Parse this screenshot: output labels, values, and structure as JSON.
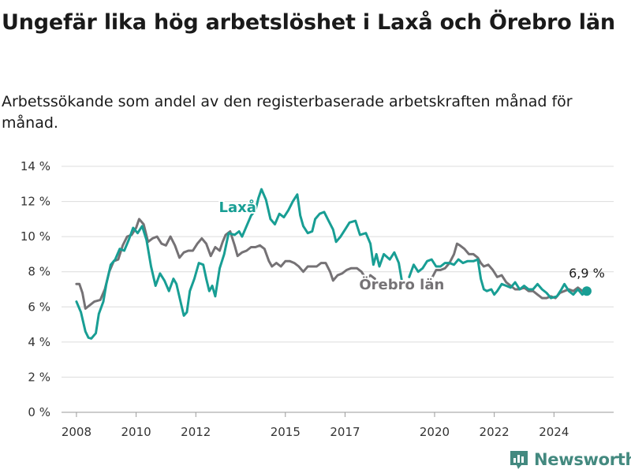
{
  "title": "Ungefär lika hög arbetslöshet i Laxå och Örebro län",
  "subtitle": "Arbetssökande som andel av den registerbaserade arbetskraften månad för månad.",
  "brand": {
    "name": "Newsworthy",
    "color": "#43897f"
  },
  "chart_data": {
    "type": "line",
    "title": "Ungefär lika hög arbetslöshet i Laxå och Örebro län",
    "subtitle": "Arbetssökande som andel av den registerbaserade arbetskraften månad för månad.",
    "xlabel": "",
    "ylabel": "",
    "ylim": [
      0,
      14
    ],
    "xlim": [
      2007.5,
      2026.0
    ],
    "y_ticks": [
      0,
      2,
      4,
      6,
      8,
      10,
      12,
      14
    ],
    "y_tick_labels": [
      "0 %",
      "2 %",
      "4 %",
      "6 %",
      "8 %",
      "10 %",
      "12 %",
      "14 %"
    ],
    "x_ticks": [
      2008,
      2010,
      2012,
      2015,
      2017,
      2020,
      2022,
      2024
    ],
    "x_tick_labels": [
      "2008",
      "2010",
      "2012",
      "2015",
      "2017",
      "2020",
      "2022",
      "2024"
    ],
    "grid": "horizontal",
    "legend": "direct labels on lines",
    "end_label": "6,9 %",
    "series": [
      {
        "name": "Laxå",
        "color": "#189e94",
        "points": [
          [
            2008.0,
            6.3
          ],
          [
            2008.15,
            5.7
          ],
          [
            2008.3,
            4.6
          ],
          [
            2008.4,
            4.25
          ],
          [
            2008.5,
            4.2
          ],
          [
            2008.65,
            4.5
          ],
          [
            2008.75,
            5.6
          ],
          [
            2008.9,
            6.3
          ],
          [
            2009.0,
            7.3
          ],
          [
            2009.15,
            8.4
          ],
          [
            2009.3,
            8.7
          ],
          [
            2009.45,
            9.3
          ],
          [
            2009.6,
            9.2
          ],
          [
            2009.75,
            9.8
          ],
          [
            2009.9,
            10.5
          ],
          [
            2010.05,
            10.2
          ],
          [
            2010.2,
            10.6
          ],
          [
            2010.35,
            9.8
          ],
          [
            2010.5,
            8.3
          ],
          [
            2010.65,
            7.2
          ],
          [
            2010.8,
            7.9
          ],
          [
            2010.95,
            7.5
          ],
          [
            2011.1,
            6.9
          ],
          [
            2011.25,
            7.6
          ],
          [
            2011.35,
            7.3
          ],
          [
            2011.5,
            6.2
          ],
          [
            2011.6,
            5.5
          ],
          [
            2011.7,
            5.7
          ],
          [
            2011.8,
            6.9
          ],
          [
            2011.95,
            7.6
          ],
          [
            2012.1,
            8.5
          ],
          [
            2012.25,
            8.4
          ],
          [
            2012.35,
            7.6
          ],
          [
            2012.45,
            6.9
          ],
          [
            2012.55,
            7.2
          ],
          [
            2012.65,
            6.6
          ],
          [
            2012.8,
            8.2
          ],
          [
            2012.95,
            9.0
          ],
          [
            2013.1,
            10.2
          ],
          [
            2013.3,
            10.1
          ],
          [
            2013.45,
            10.3
          ],
          [
            2013.55,
            10.0
          ],
          [
            2013.7,
            10.6
          ],
          [
            2013.85,
            11.2
          ],
          [
            2014.0,
            11.5
          ],
          [
            2014.1,
            12.2
          ],
          [
            2014.2,
            12.7
          ],
          [
            2014.35,
            12.1
          ],
          [
            2014.5,
            11.0
          ],
          [
            2014.65,
            10.7
          ],
          [
            2014.8,
            11.3
          ],
          [
            2014.95,
            11.1
          ],
          [
            2015.1,
            11.5
          ],
          [
            2015.25,
            12.0
          ],
          [
            2015.4,
            12.4
          ],
          [
            2015.5,
            11.2
          ],
          [
            2015.6,
            10.6
          ],
          [
            2015.75,
            10.2
          ],
          [
            2015.9,
            10.3
          ],
          [
            2016.0,
            11.0
          ],
          [
            2016.15,
            11.3
          ],
          [
            2016.3,
            11.4
          ],
          [
            2016.45,
            10.9
          ],
          [
            2016.6,
            10.4
          ],
          [
            2016.7,
            9.7
          ],
          [
            2016.85,
            10.0
          ],
          [
            2017.0,
            10.4
          ],
          [
            2017.15,
            10.8
          ],
          [
            2017.35,
            10.9
          ],
          [
            2017.5,
            10.1
          ],
          [
            2017.7,
            10.2
          ],
          [
            2017.85,
            9.6
          ],
          [
            2017.95,
            8.4
          ],
          [
            2018.05,
            9.0
          ],
          [
            2018.15,
            8.3
          ],
          [
            2018.3,
            9.0
          ],
          [
            2018.5,
            8.7
          ],
          [
            2018.65,
            9.1
          ],
          [
            2018.8,
            8.5
          ],
          [
            2018.9,
            7.5
          ],
          [
            null,
            null
          ],
          [
            2019.15,
            7.7
          ],
          [
            2019.3,
            8.4
          ],
          [
            2019.45,
            8.0
          ],
          [
            2019.6,
            8.2
          ],
          [
            2019.75,
            8.6
          ],
          [
            2019.9,
            8.7
          ],
          [
            2020.05,
            8.3
          ],
          [
            2020.2,
            8.3
          ],
          [
            2020.35,
            8.5
          ],
          [
            2020.5,
            8.5
          ],
          [
            2020.65,
            8.4
          ],
          [
            2020.8,
            8.7
          ],
          [
            2020.95,
            8.5
          ],
          [
            2021.1,
            8.6
          ],
          [
            2021.3,
            8.6
          ],
          [
            2021.45,
            8.7
          ],
          [
            2021.55,
            7.6
          ],
          [
            2021.65,
            7.0
          ],
          [
            2021.75,
            6.9
          ],
          [
            2021.9,
            7.0
          ],
          [
            2022.0,
            6.7
          ],
          [
            2022.1,
            6.9
          ],
          [
            2022.25,
            7.3
          ],
          [
            2022.4,
            7.2
          ],
          [
            2022.55,
            7.1
          ],
          [
            2022.7,
            7.4
          ],
          [
            2022.85,
            7.0
          ],
          [
            2023.0,
            7.2
          ],
          [
            2023.15,
            7.0
          ],
          [
            2023.3,
            7.0
          ],
          [
            2023.45,
            7.3
          ],
          [
            2023.6,
            7.0
          ],
          [
            2023.75,
            6.8
          ],
          [
            2023.9,
            6.5
          ],
          [
            2024.1,
            6.6
          ],
          [
            2024.25,
            7.0
          ],
          [
            2024.35,
            7.3
          ],
          [
            2024.5,
            6.9
          ],
          [
            2024.65,
            6.7
          ],
          [
            2024.8,
            7.0
          ],
          [
            2024.95,
            6.7
          ],
          [
            2025.1,
            6.9
          ]
        ]
      },
      {
        "name": "Örebro län",
        "color": "#757275",
        "points": [
          [
            2008.0,
            7.3
          ],
          [
            2008.1,
            7.3
          ],
          [
            2008.2,
            6.8
          ],
          [
            2008.3,
            5.9
          ],
          [
            2008.45,
            6.1
          ],
          [
            2008.6,
            6.3
          ],
          [
            2008.8,
            6.4
          ],
          [
            2008.95,
            7.0
          ],
          [
            2009.1,
            8.0
          ],
          [
            2009.25,
            8.6
          ],
          [
            2009.4,
            8.7
          ],
          [
            2009.55,
            9.5
          ],
          [
            2009.7,
            10.0
          ],
          [
            2009.85,
            10.1
          ],
          [
            2010.0,
            10.5
          ],
          [
            2010.1,
            11.0
          ],
          [
            2010.25,
            10.7
          ],
          [
            2010.4,
            9.7
          ],
          [
            2010.55,
            9.9
          ],
          [
            2010.7,
            10.0
          ],
          [
            2010.85,
            9.6
          ],
          [
            2011.0,
            9.5
          ],
          [
            2011.15,
            10.0
          ],
          [
            2011.3,
            9.5
          ],
          [
            2011.45,
            8.8
          ],
          [
            2011.6,
            9.1
          ],
          [
            2011.75,
            9.2
          ],
          [
            2011.9,
            9.2
          ],
          [
            2012.05,
            9.6
          ],
          [
            2012.2,
            9.9
          ],
          [
            2012.35,
            9.6
          ],
          [
            2012.5,
            8.9
          ],
          [
            2012.65,
            9.4
          ],
          [
            2012.8,
            9.2
          ],
          [
            2012.9,
            9.7
          ],
          [
            2013.0,
            10.1
          ],
          [
            2013.15,
            10.3
          ],
          [
            2013.3,
            9.5
          ],
          [
            2013.4,
            8.9
          ],
          [
            2013.55,
            9.1
          ],
          [
            2013.7,
            9.2
          ],
          [
            2013.85,
            9.4
          ],
          [
            2014.0,
            9.4
          ],
          [
            2014.15,
            9.5
          ],
          [
            2014.3,
            9.3
          ],
          [
            2014.45,
            8.6
          ],
          [
            2014.55,
            8.3
          ],
          [
            2014.7,
            8.5
          ],
          [
            2014.85,
            8.3
          ],
          [
            2015.0,
            8.6
          ],
          [
            2015.15,
            8.6
          ],
          [
            2015.3,
            8.5
          ],
          [
            2015.45,
            8.3
          ],
          [
            2015.6,
            8.0
          ],
          [
            2015.75,
            8.3
          ],
          [
            2015.9,
            8.3
          ],
          [
            2016.05,
            8.3
          ],
          [
            2016.2,
            8.5
          ],
          [
            2016.35,
            8.5
          ],
          [
            2016.5,
            8.0
          ],
          [
            2016.6,
            7.5
          ],
          [
            2016.75,
            7.8
          ],
          [
            2016.9,
            7.9
          ],
          [
            2017.05,
            8.1
          ],
          [
            2017.2,
            8.2
          ],
          [
            2017.4,
            8.2
          ],
          [
            2017.55,
            8.0
          ],
          [
            2017.7,
            7.6
          ],
          [
            2017.85,
            7.8
          ],
          [
            2018.0,
            7.6
          ],
          [
            null,
            null
          ],
          [
            2019.9,
            7.6
          ],
          [
            2020.05,
            8.1
          ],
          [
            2020.2,
            8.1
          ],
          [
            2020.35,
            8.2
          ],
          [
            2020.5,
            8.5
          ],
          [
            2020.65,
            9.0
          ],
          [
            2020.75,
            9.6
          ],
          [
            2020.85,
            9.5
          ],
          [
            2021.0,
            9.3
          ],
          [
            2021.15,
            9.0
          ],
          [
            2021.3,
            9.0
          ],
          [
            2021.45,
            8.8
          ],
          [
            2021.55,
            8.5
          ],
          [
            2021.65,
            8.3
          ],
          [
            2021.8,
            8.4
          ],
          [
            2021.95,
            8.1
          ],
          [
            2022.1,
            7.7
          ],
          [
            2022.25,
            7.8
          ],
          [
            2022.4,
            7.4
          ],
          [
            2022.55,
            7.2
          ],
          [
            2022.7,
            7.0
          ],
          [
            2022.85,
            7.0
          ],
          [
            2023.0,
            7.1
          ],
          [
            2023.15,
            6.9
          ],
          [
            2023.3,
            6.9
          ],
          [
            2023.45,
            6.7
          ],
          [
            2023.6,
            6.5
          ],
          [
            2023.75,
            6.5
          ],
          [
            2023.9,
            6.6
          ],
          [
            2024.05,
            6.5
          ],
          [
            2024.2,
            6.8
          ],
          [
            2024.35,
            6.9
          ],
          [
            2024.5,
            7.0
          ],
          [
            2024.65,
            6.9
          ],
          [
            2024.8,
            7.1
          ],
          [
            2024.95,
            6.9
          ],
          [
            2025.1,
            6.9
          ]
        ]
      }
    ],
    "series_label_points": [
      [
        2013.4,
        11.4
      ],
      [
        2018.9,
        7.0
      ]
    ],
    "end_point": [
      2025.1,
      6.9
    ]
  }
}
